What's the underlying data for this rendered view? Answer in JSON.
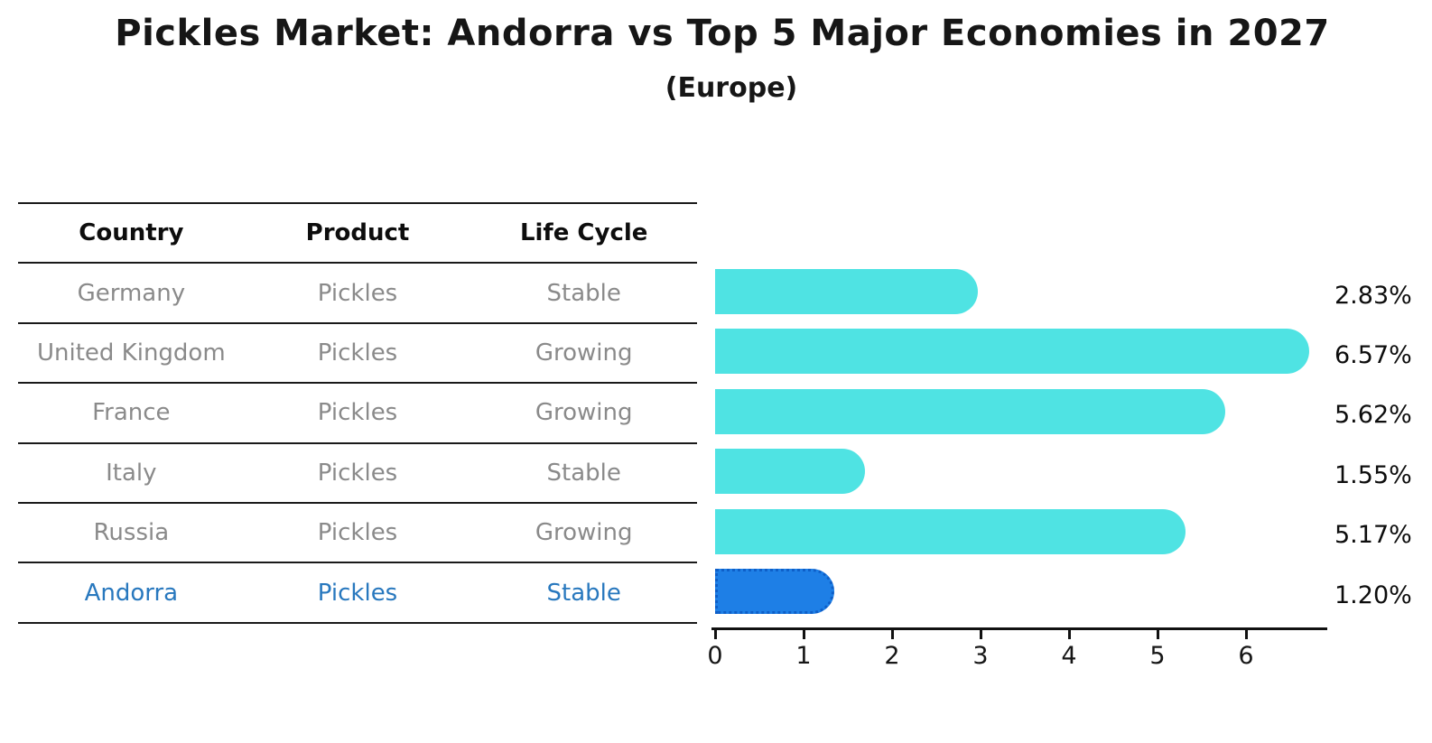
{
  "title": "Pickles Market: Andorra vs Top 5 Major Economies in 2027",
  "subtitle": "(Europe)",
  "table": {
    "headers": [
      "Country",
      "Product",
      "Life Cycle"
    ],
    "rows": [
      {
        "country": "Germany",
        "product": "Pickles",
        "life_cycle": "Stable",
        "highlighted": false
      },
      {
        "country": "United Kingdom",
        "product": "Pickles",
        "life_cycle": "Growing",
        "highlighted": false
      },
      {
        "country": "France",
        "product": "Pickles",
        "life_cycle": "Growing",
        "highlighted": false
      },
      {
        "country": "Italy",
        "product": "Pickles",
        "life_cycle": "Stable",
        "highlighted": false
      },
      {
        "country": "Russia",
        "product": "Pickles",
        "life_cycle": "Growing",
        "highlighted": false
      },
      {
        "country": "Andorra",
        "product": "Pickles",
        "life_cycle": "Stable",
        "highlighted": true
      }
    ]
  },
  "chart_data": {
    "type": "bar",
    "orientation": "horizontal",
    "title": "Pickles Market: Andorra vs Top 5 Major Economies in 2027",
    "subtitle": "(Europe)",
    "categories": [
      "Germany",
      "United Kingdom",
      "France",
      "Italy",
      "Russia",
      "Andorra"
    ],
    "values": [
      2.83,
      6.57,
      5.62,
      1.55,
      5.17,
      1.2
    ],
    "value_labels": [
      "2.83%",
      "6.57%",
      "5.62%",
      "1.55%",
      "5.17%",
      "1.20%"
    ],
    "xlabel": "",
    "ylabel": "",
    "x_ticks": [
      0,
      1,
      2,
      3,
      4,
      5,
      6
    ],
    "xlim": [
      0,
      6.9
    ],
    "grid": false,
    "legend": false,
    "bar_color": "#4FE3E3",
    "highlight_index": 5,
    "highlight_bar_color": "#1E7FE6",
    "highlight_border_color": "#0E5FC8"
  },
  "colors": {
    "row_text": "#8a8a8a",
    "header_text": "#0d0d0d",
    "highlight_text": "#2878BE",
    "line": "#1a1a1a",
    "axis": "#111111"
  }
}
